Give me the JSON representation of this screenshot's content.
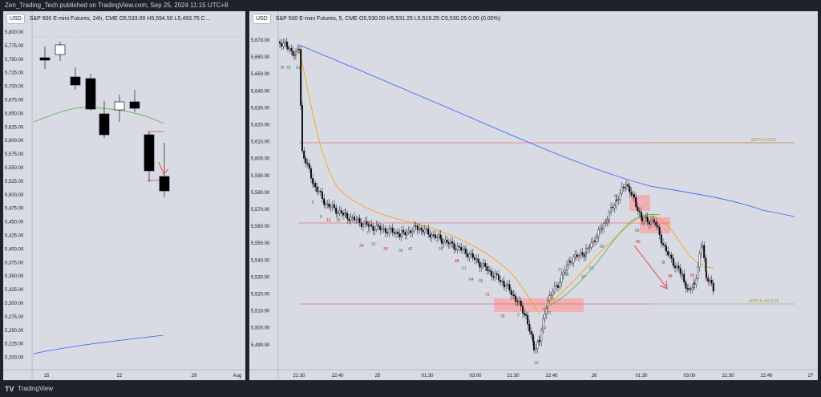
{
  "topbar": {
    "publisher_line": "Zen_Trading_Tech published on TradingView.com, Sep 25, 2024 11:15 UTC+8"
  },
  "left_chart": {
    "currency": "USD",
    "symbol_line": "S&P 500 E-mini Futures, 24h, CME  O5,533.00  H5,594.50  L5,493.75  C…",
    "price_labels": [
      "5,800.00",
      "5,775.00",
      "5,750.00",
      "5,725.00",
      "5,700.00",
      "5,675.00",
      "5,650.00",
      "5,625.00",
      "5,600.00",
      "5,575.00",
      "5,550.00",
      "5,525.00",
      "5,500.00",
      "5,475.00",
      "5,450.00",
      "5,425.00",
      "5,400.00",
      "5,375.00",
      "5,350.00",
      "5,325.00",
      "5,300.00",
      "5,275.00",
      "5,250.00",
      "5,225.00",
      "5,200.00"
    ],
    "time_labels": [
      "15",
      "22",
      "29",
      "Aug"
    ],
    "colors": {
      "up_candle": "#ffffff",
      "down_candle": "#000000",
      "ma_green": "#4caf50",
      "ma_blue": "#2962ff",
      "red_line": "#f23645"
    }
  },
  "right_chart": {
    "currency": "USD",
    "symbol_line": "S&P 500 E-mini Futures, 5, CME  O5,530.00  H5,531.25  L5,519.25  C5,530.25  0.00 (0.00%)",
    "price_labels": [
      "5,670.00",
      "5,660.00",
      "5,650.00",
      "5,640.00",
      "5,630.00",
      "5,620.00",
      "5,610.00",
      "5,600.00",
      "5,590.00",
      "5,580.00",
      "5,570.00",
      "5,560.00",
      "5,550.00",
      "5,540.00",
      "5,530.00",
      "5,520.00",
      "5,510.00",
      "5,500.00",
      "5,490.00"
    ],
    "time_labels": [
      "21:30",
      "22:40",
      "25",
      "01:30",
      "03:00",
      "21:30",
      "22:40",
      "26",
      "01:30",
      "03:00",
      "21:30",
      "22:40",
      "27"
    ],
    "level_labels": {
      "upper": "yRTH hi 5613",
      "lower": "yRTH lo 5523.25"
    },
    "bar_counts": {
      "green": [
        "75",
        "79",
        "81",
        "6",
        "9",
        "18",
        "27",
        "31",
        "39",
        "42",
        "54",
        "57",
        "61",
        "64",
        "66",
        "3",
        "9",
        "15",
        "21",
        "27",
        "30",
        "37",
        "51",
        "57",
        "60",
        "66",
        "69",
        "78"
      ],
      "red": [
        "12",
        "24",
        "33",
        "48",
        "72",
        "78",
        "82",
        "36",
        "40",
        "48",
        "62",
        "72"
      ]
    },
    "colors": {
      "ma_blue": "#2962ff",
      "ema_orange": "#ff9800",
      "ema_green": "#4caf50",
      "level_red": "#f23645",
      "level_olive": "#9a9a3a",
      "zone_fill": "#f4a6a6",
      "arrow": "#f23645"
    }
  },
  "footer": {
    "logo": "TV",
    "brand": "TradingView"
  }
}
